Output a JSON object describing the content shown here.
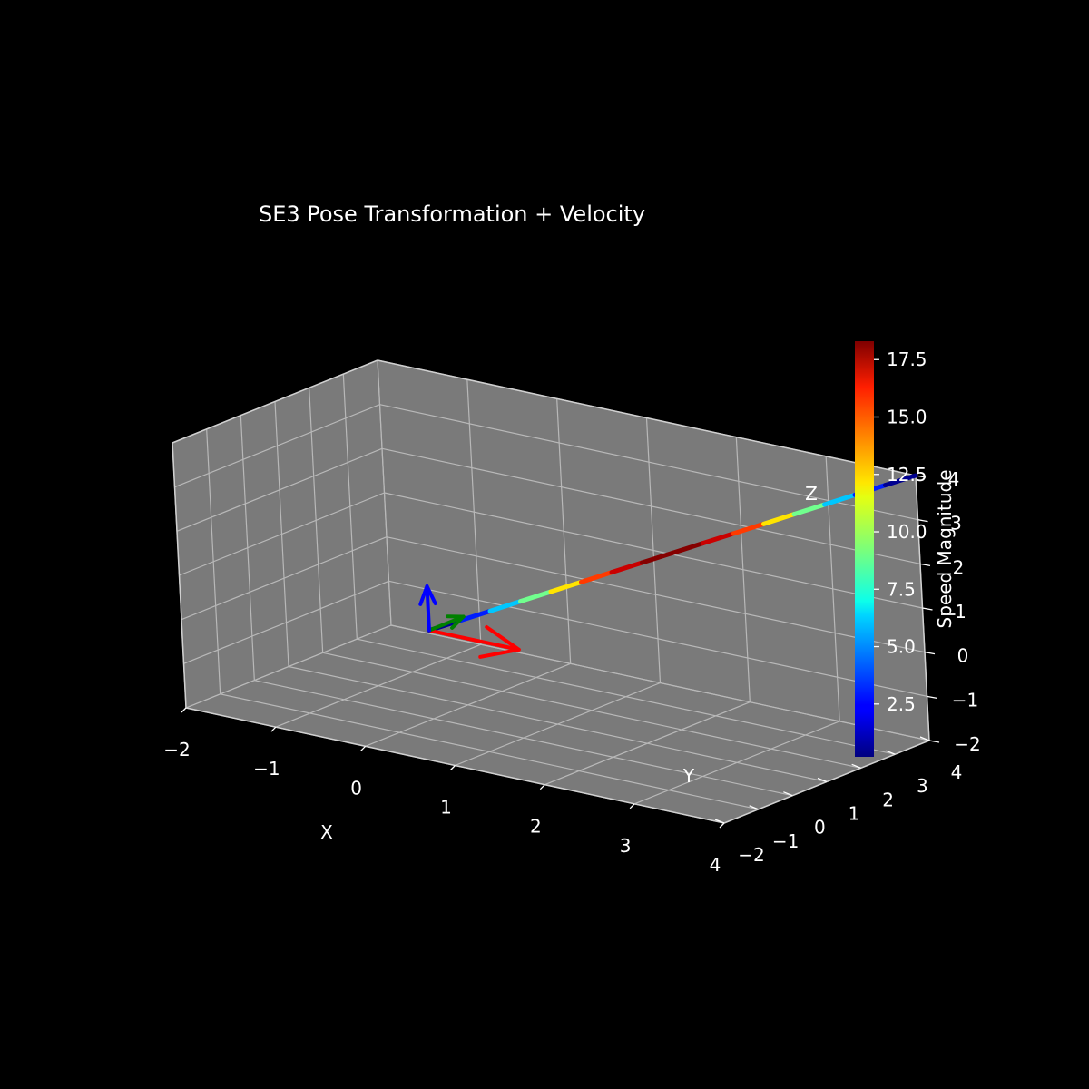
{
  "chart_data": {
    "type": "line3d",
    "title": "SE3 Pose Transformation + Velocity",
    "xlabel": "X",
    "ylabel": "Y",
    "zlabel": "Z",
    "xlim": [
      -2,
      4
    ],
    "ylim": [
      -2,
      4
    ],
    "zlim": [
      -2,
      4
    ],
    "xticks": [
      "−2",
      "−1",
      "0",
      "1",
      "2",
      "3",
      "4"
    ],
    "yticks": [
      "−2",
      "−1",
      "0",
      "1",
      "2",
      "3",
      "4"
    ],
    "zticks": [
      "−2",
      "−1",
      "0",
      "1",
      "2",
      "3",
      "4"
    ],
    "grid": true,
    "pane_color": "#7a7a7a",
    "background": "#000000",
    "trajectory": {
      "start": [
        0,
        0,
        0
      ],
      "end": [
        4,
        4,
        4
      ],
      "speed": [
        0.5,
        3,
        6,
        9,
        12,
        15,
        17,
        18.2,
        18.2,
        17,
        15,
        12,
        9,
        6,
        3,
        0.5
      ]
    },
    "axes_arrows": [
      {
        "axis": "x",
        "color": "#ff0000",
        "from": [
          0,
          0,
          0
        ],
        "to": [
          1,
          0,
          0
        ]
      },
      {
        "axis": "y",
        "color": "#008000",
        "from": [
          0,
          0,
          0
        ],
        "to": [
          0,
          1,
          0
        ]
      },
      {
        "axis": "z",
        "color": "#0000ff",
        "from": [
          0,
          0,
          0
        ],
        "to": [
          0,
          0,
          1
        ]
      }
    ],
    "colorbar": {
      "label": "Speed Magnitude",
      "colormap": "jet",
      "min": 0.2,
      "max": 18.3,
      "ticks": [
        2.5,
        5.0,
        7.5,
        10.0,
        12.5,
        15.0,
        17.5
      ],
      "tick_labels": [
        "2.5",
        "5.0",
        "7.5",
        "10.0",
        "12.5",
        "15.0",
        "17.5"
      ]
    }
  }
}
